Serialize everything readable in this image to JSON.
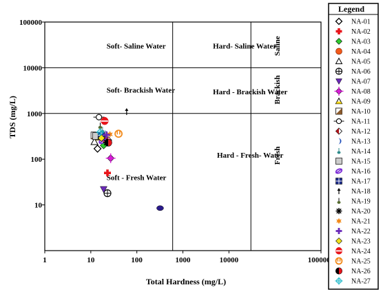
{
  "chart_data": {
    "type": "scatter",
    "xlabel": "Total Hardness (mg/L)",
    "ylabel": "TDS (mg/L)",
    "xscale": "log",
    "yscale": "log",
    "xlim": [
      1,
      1000000
    ],
    "ylim": [
      1,
      100000
    ],
    "x_ticks": [
      {
        "value": 1,
        "label": "1"
      },
      {
        "value": 10,
        "label": "10"
      },
      {
        "value": 100,
        "label": "100"
      },
      {
        "value": 1000,
        "label": "1000"
      },
      {
        "value": 10000,
        "label": "10000"
      },
      {
        "value": 1000000,
        "label": "1000000"
      }
    ],
    "y_ticks": [
      {
        "value": 10,
        "label": "10"
      },
      {
        "value": 100,
        "label": "100"
      },
      {
        "value": 1000,
        "label": "1000"
      },
      {
        "value": 10000,
        "label": "10000"
      },
      {
        "value": 100000,
        "label": "100000"
      }
    ],
    "grid": false,
    "dividers": {
      "vertical_x": [
        600,
        30000
      ],
      "horizontal_y": [
        1000,
        10000
      ]
    },
    "region_labels": [
      {
        "text": "Soft- Saline Water",
        "x": 22,
        "y": 30000
      },
      {
        "text": "Hard- Saline Water",
        "x": 4500,
        "y": 30000
      },
      {
        "text": "Soft- Brackish Water",
        "x": 22,
        "y": 3300
      },
      {
        "text": "Hard - Brackish Water",
        "x": 4500,
        "y": 3000
      },
      {
        "text": "Hard - Fresh- Water",
        "x": 5500,
        "y": 125
      },
      {
        "text": "Soft - Fresh Water",
        "x": 22,
        "y": 40
      }
    ],
    "class_labels": [
      {
        "text": "Saline",
        "x": 110000,
        "y": 30000
      },
      {
        "text": "Brackish",
        "x": 110000,
        "y": 3300
      },
      {
        "text": "Fresh",
        "x": 110000,
        "y": 120
      }
    ],
    "legend_title": "Legend",
    "legend_position": "right",
    "series": [
      {
        "name": "NA-01",
        "marker": "diamond-open",
        "color": "#000000",
        "x": 14,
        "y": 170
      },
      {
        "name": "NA-02",
        "marker": "plus-thick",
        "color": "#e8151b",
        "x": 23,
        "y": 50
      },
      {
        "name": "NA-03",
        "marker": "diamond-filled",
        "color": "#2ecc2e",
        "x": 19,
        "y": 200
      },
      {
        "name": "NA-04",
        "marker": "circle-filled",
        "color": "#f25a1a",
        "x": 21,
        "y": 270
      },
      {
        "name": "NA-05",
        "marker": "triangle-open",
        "color": "#000000",
        "x": 12,
        "y": 240
      },
      {
        "name": "NA-06",
        "marker": "circle-cross",
        "color": "#000000",
        "x": 23,
        "y": 18
      },
      {
        "name": "NA-07",
        "marker": "triangle-down-filled",
        "color": "#6a2ab8",
        "x": 19,
        "y": 22
      },
      {
        "name": "NA-08",
        "marker": "diamond-cross",
        "color": "#d61ed6",
        "x": 27,
        "y": 105
      },
      {
        "name": "NA-09",
        "marker": "triangle-half",
        "color": "#f2d61a",
        "x": 15,
        "y": 300
      },
      {
        "name": "NA-10",
        "marker": "square-half",
        "color": "#8b5a2b",
        "x": 12,
        "y": 330
      },
      {
        "name": "NA-11",
        "marker": "circle-dash",
        "color": "#000000",
        "x": 15,
        "y": 830
      },
      {
        "name": "NA-12",
        "marker": "diamond-half",
        "color": "#b0151b",
        "x": 24,
        "y": 260
      },
      {
        "name": "NA-13",
        "marker": "crescent",
        "color": "#1a4ab8",
        "x": 20,
        "y": 360
      },
      {
        "name": "NA-14",
        "marker": "lollipop",
        "color": "#2e8b8b",
        "x": 18,
        "y": 430
      },
      {
        "name": "NA-15",
        "marker": "square-filled",
        "color": "#cccccc",
        "x": 13,
        "y": 320
      },
      {
        "name": "NA-16",
        "marker": "ellipse-slash",
        "color": "#7a2ad6",
        "x": 18,
        "y": 250
      },
      {
        "name": "NA-17",
        "marker": "square-grid",
        "color": "#1a2a8b",
        "x": 17,
        "y": 330
      },
      {
        "name": "NA-18",
        "marker": "arrow-up",
        "color": "#000000",
        "x": 60,
        "y": 1100
      },
      {
        "name": "NA-19",
        "marker": "lollipop-green",
        "color": "#556b2f",
        "x": 16,
        "y": 530
      },
      {
        "name": "NA-20",
        "marker": "asterisk",
        "color": "#000000",
        "x": 22,
        "y": 230
      },
      {
        "name": "NA-21",
        "marker": "star",
        "color": "#f28a1a",
        "x": 26,
        "y": 350
      },
      {
        "name": "NA-22",
        "marker": "plus-bold",
        "color": "#6a2ab8",
        "x": 22,
        "y": 340
      },
      {
        "name": "NA-23",
        "marker": "diamond-filled",
        "color": "#f2e21a",
        "x": 17,
        "y": 290
      },
      {
        "name": "NA-24",
        "marker": "circle-halfline",
        "color": "#e8151b",
        "x": 20,
        "y": 680
      },
      {
        "name": "NA-25",
        "marker": "circle-open-orange",
        "color": "#f28a1a",
        "x": 40,
        "y": 360
      },
      {
        "name": "NA-26",
        "marker": "circle-half-vert",
        "color": "#e8151b",
        "x": 24,
        "y": 230
      },
      {
        "name": "NA-27",
        "marker": "circle-crosshair",
        "color": "#1ab8c8",
        "x": 16,
        "y": 390
      },
      {
        "name": "",
        "marker": "ellipse-filled",
        "color": "#2a1a8b",
        "x": 320,
        "y": 8.5
      }
    ]
  }
}
